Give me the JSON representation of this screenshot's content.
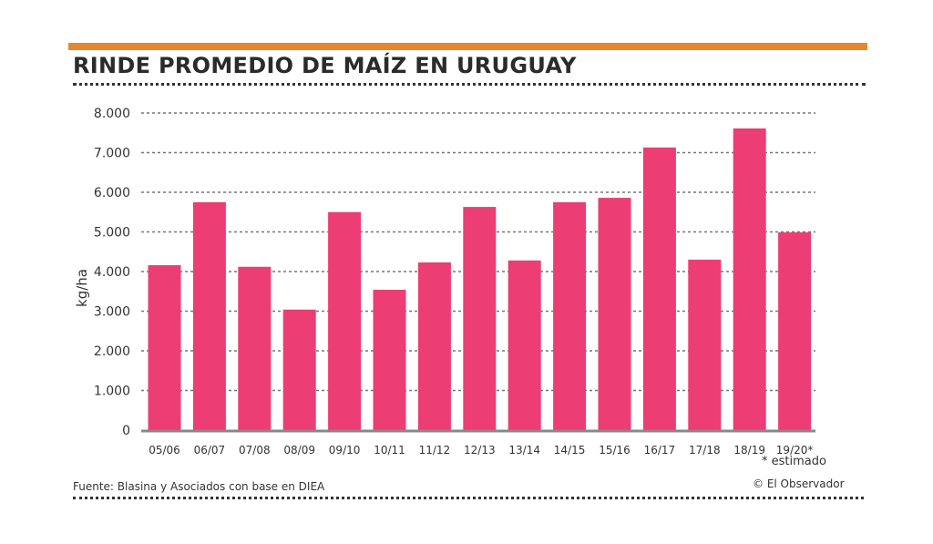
{
  "colors": {
    "accent_bar": "#e8862b",
    "bar": "#ec3d74",
    "text": "#2b2b2b",
    "grid": "#777777"
  },
  "header": {
    "title": "RINDE PROMEDIO DE MAÍZ EN URUGUAY"
  },
  "footer": {
    "source": "Fuente: Blasina y Asociados con base en DIEA",
    "note": "* estimado",
    "credit": "© El Observador"
  },
  "chart_data": {
    "type": "bar",
    "title": "RINDE PROMEDIO DE MAÍZ EN URUGUAY",
    "xlabel": "",
    "ylabel": "kg/ha",
    "ylim": [
      0,
      8000
    ],
    "yticks": [
      0,
      1000,
      2000,
      3000,
      4000,
      5000,
      6000,
      7000,
      8000
    ],
    "ytick_labels": [
      "0",
      "1.000",
      "2.000",
      "3.000",
      "4.000",
      "5.000",
      "6.000",
      "7.000",
      "8.000"
    ],
    "grid": true,
    "legend": "none",
    "categories": [
      "05/06",
      "06/07",
      "07/08",
      "08/09",
      "09/10",
      "10/11",
      "11/12",
      "12/13",
      "13/14",
      "14/15",
      "15/16",
      "16/17",
      "17/18",
      "18/19",
      "19/20*"
    ],
    "values": [
      4160,
      5750,
      4120,
      3040,
      5500,
      3540,
      4230,
      5630,
      4280,
      5750,
      5860,
      7130,
      4300,
      7610,
      4990
    ],
    "annotations": [
      "* estimado"
    ]
  }
}
